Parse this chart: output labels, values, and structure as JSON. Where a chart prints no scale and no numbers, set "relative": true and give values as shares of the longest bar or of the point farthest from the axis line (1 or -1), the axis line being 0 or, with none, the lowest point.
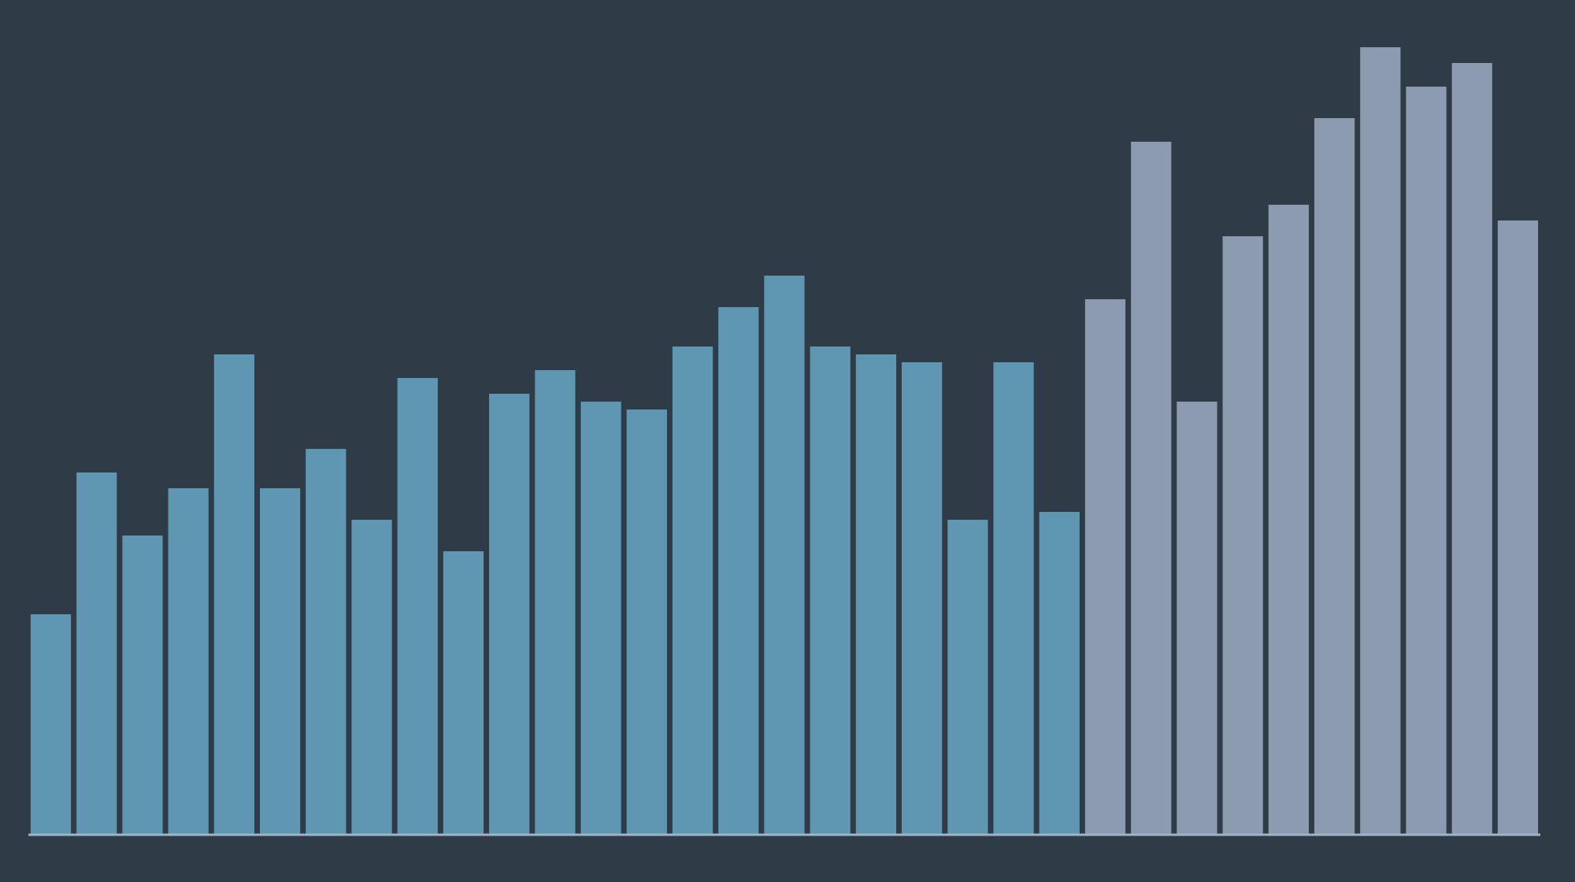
{
  "chart_data": {
    "type": "bar",
    "relative": true,
    "categories": [
      null,
      null,
      null,
      null,
      null,
      null,
      null,
      null,
      null,
      null,
      null,
      null,
      null,
      null,
      null,
      null,
      null,
      null,
      null,
      null,
      null,
      null,
      null,
      null,
      null,
      null,
      null,
      null,
      null,
      null,
      null,
      null,
      null
    ],
    "values": [
      0.28,
      0.46,
      0.38,
      0.44,
      0.61,
      0.44,
      0.49,
      0.4,
      0.58,
      0.36,
      0.56,
      0.59,
      0.55,
      0.54,
      0.62,
      0.67,
      0.71,
      0.62,
      0.61,
      0.6,
      0.4,
      0.6,
      0.41,
      0.68,
      0.88,
      0.55,
      0.76,
      0.8,
      0.91,
      1,
      0.95,
      0.98,
      0.78
    ],
    "colors": [
      "#5f97b3",
      "#5f97b3",
      "#5f97b3",
      "#5f97b3",
      "#5f97b3",
      "#5f97b3",
      "#5f97b3",
      "#5f97b3",
      "#5f97b3",
      "#5f97b3",
      "#5f97b3",
      "#5f97b3",
      "#5f97b3",
      "#5f97b3",
      "#5f97b3",
      "#5f97b3",
      "#5f97b3",
      "#5f97b3",
      "#5f97b3",
      "#5f97b3",
      "#5f97b3",
      "#5f97b3",
      "#5f97b3",
      "#8d9bb0",
      "#8d9bb0",
      "#8d9bb0",
      "#8d9bb0",
      "#8d9bb0",
      "#8d9bb0",
      "#8d9bb0",
      "#8d9bb0",
      "#8d9bb0",
      "#8d9bb0"
    ],
    "grid": false
  }
}
